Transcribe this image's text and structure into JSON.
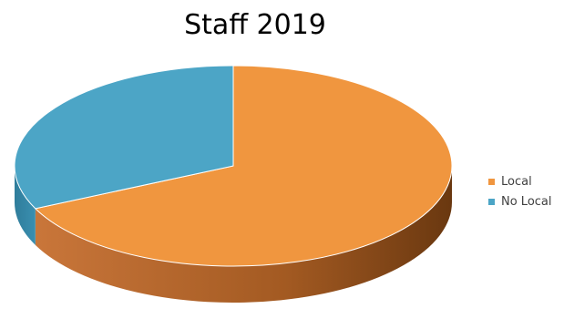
{
  "chart_data": {
    "type": "pie",
    "title": "Staff 2019",
    "categories": [
      "Local",
      "No Local"
    ],
    "values": [
      68,
      32
    ],
    "colors": [
      "#F0963F",
      "#4CA5C6"
    ],
    "style": "3d",
    "legend_position": "right"
  }
}
